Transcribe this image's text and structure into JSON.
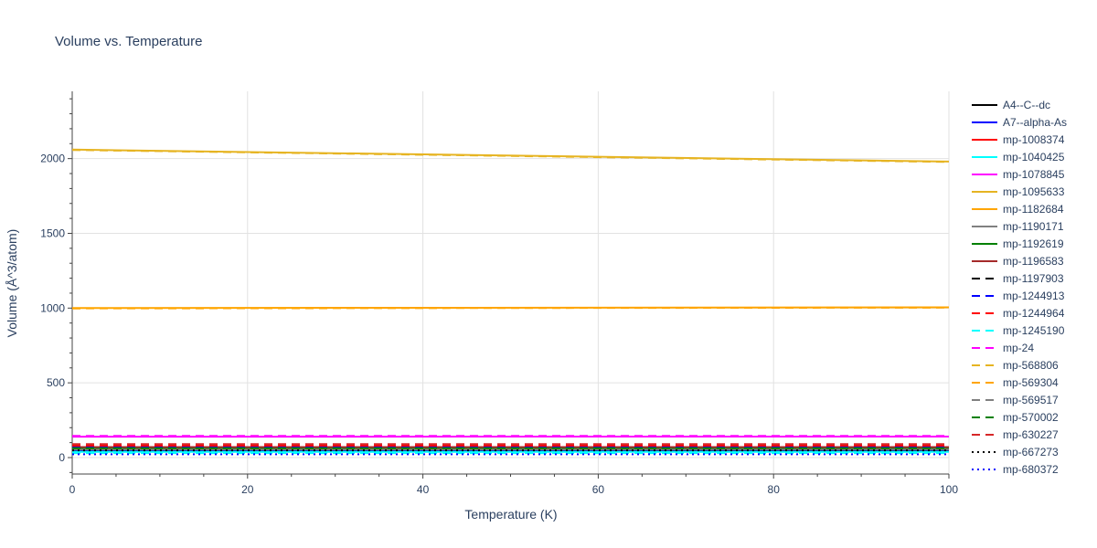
{
  "chart_data": {
    "type": "line",
    "title": "Volume vs. Temperature",
    "xlabel": "Temperature (K)",
    "ylabel": "Volume (Å^3/atom)",
    "xlim": [
      0,
      100
    ],
    "ylim": [
      -110,
      2450
    ],
    "x_ticks": [
      0,
      20,
      40,
      60,
      80,
      100
    ],
    "y_ticks": [
      0,
      500,
      1000,
      1500,
      2000
    ],
    "grid": true,
    "legend_position": "right",
    "x": [
      0,
      100
    ],
    "series": [
      {
        "name": "A4--C--dc",
        "color": "#000000",
        "dash": "solid",
        "values": [
          45,
          45.3
        ]
      },
      {
        "name": "A7--alpha-As",
        "color": "#0000ff",
        "dash": "solid",
        "values": [
          52,
          52.3
        ]
      },
      {
        "name": "mp-1008374",
        "color": "#ff0000",
        "dash": "solid",
        "values": [
          60,
          60.3
        ]
      },
      {
        "name": "mp-1040425",
        "color": "#00ffff",
        "dash": "solid",
        "values": [
          38,
          38.2
        ]
      },
      {
        "name": "mp-1078845",
        "color": "#ff00ff",
        "dash": "solid",
        "values": [
          140,
          140.5
        ]
      },
      {
        "name": "mp-1095633",
        "color": "#e6b422",
        "dash": "solid",
        "values": [
          2060,
          1980
        ]
      },
      {
        "name": "mp-1182684",
        "color": "#ffa500",
        "dash": "solid",
        "values": [
          1000,
          1005
        ]
      },
      {
        "name": "mp-1190171",
        "color": "#808080",
        "dash": "solid",
        "values": [
          55,
          55.3
        ]
      },
      {
        "name": "mp-1192619",
        "color": "#008000",
        "dash": "solid",
        "values": [
          65,
          65.3
        ]
      },
      {
        "name": "mp-1196583",
        "color": "#a52a2a",
        "dash": "solid",
        "values": [
          70,
          70.3
        ]
      },
      {
        "name": "mp-1197903",
        "color": "#000000",
        "dash": "dash",
        "values": [
          85,
          85.4
        ]
      },
      {
        "name": "mp-1244913",
        "color": "#0000ff",
        "dash": "dash",
        "values": [
          75,
          75.3
        ]
      },
      {
        "name": "mp-1244964",
        "color": "#ff0000",
        "dash": "dash",
        "values": [
          80,
          80.3
        ]
      },
      {
        "name": "mp-1245190",
        "color": "#00ffff",
        "dash": "dash",
        "values": [
          30,
          30.2
        ]
      },
      {
        "name": "mp-24",
        "color": "#ff00ff",
        "dash": "dash",
        "values": [
          145,
          145.5
        ]
      },
      {
        "name": "mp-568806",
        "color": "#e6b422",
        "dash": "dash",
        "values": [
          2058,
          1978
        ]
      },
      {
        "name": "mp-569304",
        "color": "#ffa500",
        "dash": "dash",
        "values": [
          998,
          1003
        ]
      },
      {
        "name": "mp-569517",
        "color": "#808080",
        "dash": "dash",
        "values": [
          58,
          58.3
        ]
      },
      {
        "name": "mp-570002",
        "color": "#008000",
        "dash": "dash",
        "values": [
          62,
          62.3
        ]
      },
      {
        "name": "mp-630227",
        "color": "#d62728",
        "dash": "dash",
        "values": [
          90,
          90.4
        ]
      },
      {
        "name": "mp-667273",
        "color": "#000000",
        "dash": "dot",
        "values": [
          48,
          48.2
        ]
      },
      {
        "name": "mp-680372",
        "color": "#0000ff",
        "dash": "dot",
        "values": [
          22,
          22.1
        ]
      }
    ]
  }
}
